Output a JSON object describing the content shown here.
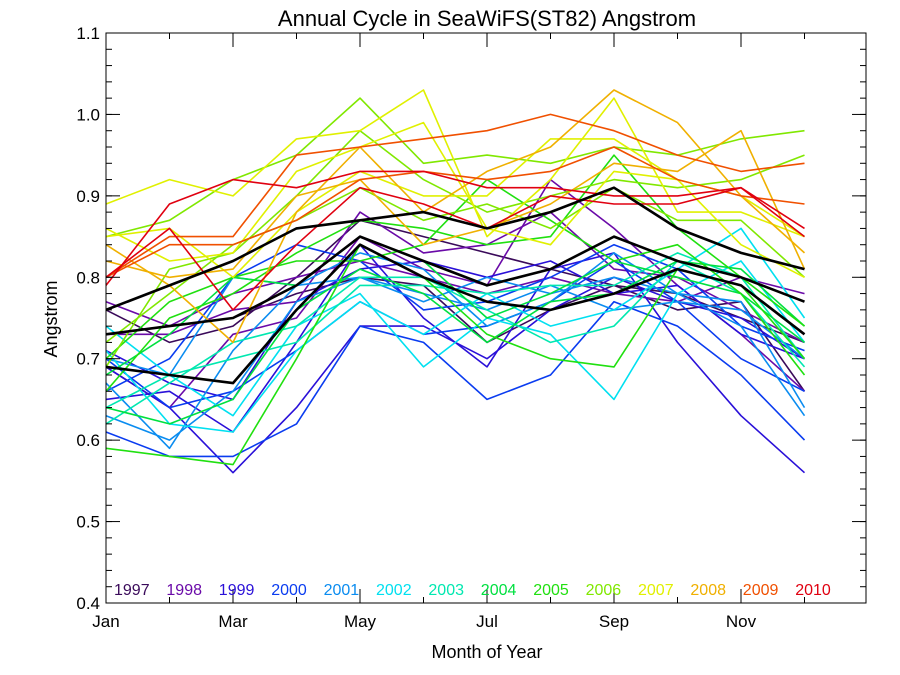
{
  "chart_data": {
    "type": "line",
    "title": "Annual Cycle in SeaWiFS(ST82) Angstrom",
    "xlabel": "Month of Year",
    "ylabel": "Angstrom",
    "xlim": [
      1,
      12
    ],
    "ylim": [
      0.4,
      1.1
    ],
    "x": [
      1,
      2,
      3,
      4,
      5,
      6,
      7,
      8,
      9,
      10,
      11,
      12
    ],
    "x_ticks": [
      {
        "value": 1,
        "label": "Jan"
      },
      {
        "value": 3,
        "label": "Mar"
      },
      {
        "value": 5,
        "label": "May"
      },
      {
        "value": 7,
        "label": "Jul"
      },
      {
        "value": 9,
        "label": "Sep"
      },
      {
        "value": 11,
        "label": "Nov"
      }
    ],
    "y_ticks": [
      {
        "value": 0.4,
        "label": "0.4"
      },
      {
        "value": 0.5,
        "label": "0.5"
      },
      {
        "value": 0.6,
        "label": "0.6"
      },
      {
        "value": 0.7,
        "label": "0.7"
      },
      {
        "value": 0.8,
        "label": "0.8"
      },
      {
        "value": 0.9,
        "label": "0.9"
      },
      {
        "value": 1.0,
        "label": "1.0"
      },
      {
        "value": 1.1,
        "label": "1.1"
      }
    ],
    "legend_position": "bottom, inside plot",
    "legend": [
      {
        "label": "1997",
        "color": "#3a0a5a"
      },
      {
        "label": "1998",
        "color": "#6a0aa8"
      },
      {
        "label": "1999",
        "color": "#2a10d8"
      },
      {
        "label": "2000",
        "color": "#0a3cf0"
      },
      {
        "label": "2001",
        "color": "#0a8cf0"
      },
      {
        "label": "2002",
        "color": "#00e0f0"
      },
      {
        "label": "2003",
        "color": "#00e8b0"
      },
      {
        "label": "2004",
        "color": "#00e040"
      },
      {
        "label": "2005",
        "color": "#20e010"
      },
      {
        "label": "2006",
        "color": "#80e800"
      },
      {
        "label": "2007",
        "color": "#e0f000"
      },
      {
        "label": "2008",
        "color": "#f0b000"
      },
      {
        "label": "2009",
        "color": "#f05000"
      },
      {
        "label": "2010",
        "color": "#e00010"
      }
    ],
    "series": [
      {
        "color": "#3a0a5a",
        "values": [
          0.76,
          0.72,
          0.74,
          0.8,
          0.87,
          0.85,
          0.83,
          0.81,
          0.79,
          0.78,
          0.75,
          0.72
        ]
      },
      {
        "color": "#3a0a5a",
        "values": [
          0.73,
          0.74,
          0.75,
          0.78,
          0.8,
          0.79,
          0.72,
          0.76,
          0.79,
          0.76,
          0.77,
          0.66
        ]
      },
      {
        "color": "#6a0aa8",
        "values": [
          0.77,
          0.74,
          0.78,
          0.8,
          0.82,
          0.8,
          0.78,
          0.8,
          0.78,
          0.77,
          0.8,
          0.78
        ]
      },
      {
        "color": "#6a0aa8",
        "values": [
          0.73,
          0.73,
          0.76,
          0.77,
          0.88,
          0.83,
          0.84,
          0.88,
          0.81,
          0.8,
          0.76,
          0.72
        ]
      },
      {
        "color": "#6a0aa8",
        "values": [
          0.69,
          0.64,
          0.73,
          0.75,
          0.85,
          0.81,
          0.79,
          0.92,
          0.86,
          0.79,
          0.73,
          0.66
        ]
      },
      {
        "color": "#2a10d8",
        "values": [
          0.69,
          0.64,
          0.56,
          0.64,
          0.74,
          0.74,
          0.7,
          0.76,
          0.8,
          0.77,
          0.75,
          0.7
        ]
      },
      {
        "color": "#2a10d8",
        "values": [
          0.65,
          0.66,
          0.61,
          0.72,
          0.84,
          0.75,
          0.69,
          0.81,
          0.83,
          0.72,
          0.63,
          0.56
        ]
      },
      {
        "color": "#2a10d8",
        "values": [
          0.71,
          0.67,
          0.65,
          0.77,
          0.81,
          0.82,
          0.8,
          0.82,
          0.78,
          0.79,
          0.73,
          0.7
        ]
      },
      {
        "color": "#0a3cf0",
        "values": [
          0.61,
          0.58,
          0.58,
          0.62,
          0.74,
          0.72,
          0.65,
          0.68,
          0.77,
          0.74,
          0.68,
          0.6
        ]
      },
      {
        "color": "#0a3cf0",
        "values": [
          0.7,
          0.64,
          0.66,
          0.71,
          0.77,
          0.73,
          0.74,
          0.77,
          0.82,
          0.77,
          0.7,
          0.66
        ]
      },
      {
        "color": "#0a3cf0",
        "values": [
          0.66,
          0.7,
          0.8,
          0.84,
          0.82,
          0.76,
          0.77,
          0.8,
          0.84,
          0.81,
          0.74,
          0.71
        ]
      },
      {
        "color": "#0a8cf0",
        "values": [
          0.63,
          0.6,
          0.66,
          0.77,
          0.8,
          0.78,
          0.76,
          0.79,
          0.76,
          0.77,
          0.76,
          0.7
        ]
      },
      {
        "color": "#0a8cf0",
        "values": [
          0.67,
          0.59,
          0.71,
          0.79,
          0.8,
          0.77,
          0.8,
          0.78,
          0.8,
          0.78,
          0.77,
          0.64
        ]
      },
      {
        "color": "#0a8cf0",
        "values": [
          0.7,
          0.68,
          0.8,
          0.79,
          0.83,
          0.81,
          0.74,
          0.77,
          0.83,
          0.78,
          0.74,
          0.63
        ]
      },
      {
        "color": "#00e0f0",
        "values": [
          0.74,
          0.68,
          0.63,
          0.74,
          0.78,
          0.69,
          0.75,
          0.73,
          0.65,
          0.78,
          0.82,
          0.72
        ]
      },
      {
        "color": "#00e0f0",
        "values": [
          0.71,
          0.62,
          0.61,
          0.71,
          0.77,
          0.73,
          0.78,
          0.74,
          0.76,
          0.81,
          0.86,
          0.75
        ]
      },
      {
        "color": "#00e8b0",
        "values": [
          0.62,
          0.67,
          0.72,
          0.74,
          0.8,
          0.8,
          0.76,
          0.72,
          0.74,
          0.82,
          0.78,
          0.69
        ]
      },
      {
        "color": "#00e8b0",
        "values": [
          0.64,
          0.68,
          0.7,
          0.72,
          0.79,
          0.79,
          0.78,
          0.79,
          0.79,
          0.83,
          0.8,
          0.7
        ]
      },
      {
        "color": "#00e040",
        "values": [
          0.64,
          0.62,
          0.65,
          0.76,
          0.81,
          0.78,
          0.72,
          0.77,
          0.78,
          0.82,
          0.81,
          0.74
        ]
      },
      {
        "color": "#00e040",
        "values": [
          0.68,
          0.73,
          0.8,
          0.79,
          0.85,
          0.82,
          0.75,
          0.78,
          0.82,
          0.8,
          0.78,
          0.72
        ]
      },
      {
        "color": "#20e010",
        "values": [
          0.59,
          0.58,
          0.57,
          0.7,
          0.84,
          0.8,
          0.73,
          0.7,
          0.69,
          0.81,
          0.79,
          0.7
        ]
      },
      {
        "color": "#20e010",
        "values": [
          0.66,
          0.75,
          0.78,
          0.83,
          0.87,
          0.86,
          0.84,
          0.85,
          0.95,
          0.86,
          0.8,
          0.74
        ]
      },
      {
        "color": "#20e010",
        "values": [
          0.7,
          0.77,
          0.8,
          0.82,
          0.82,
          0.84,
          0.92,
          0.87,
          0.82,
          0.84,
          0.78,
          0.68
        ]
      },
      {
        "color": "#80e800",
        "values": [
          0.85,
          0.87,
          0.92,
          0.95,
          1.02,
          0.94,
          0.95,
          0.94,
          0.96,
          0.95,
          0.97,
          0.98
        ]
      },
      {
        "color": "#80e800",
        "values": [
          0.69,
          0.81,
          0.83,
          0.9,
          0.98,
          0.92,
          0.88,
          0.9,
          0.92,
          0.91,
          0.92,
          0.95
        ]
      },
      {
        "color": "#80e800",
        "values": [
          0.72,
          0.78,
          0.84,
          0.87,
          0.91,
          0.87,
          0.89,
          0.86,
          0.91,
          0.87,
          0.87,
          0.8
        ]
      },
      {
        "color": "#e0f000",
        "values": [
          0.89,
          0.92,
          0.9,
          0.97,
          0.98,
          1.03,
          0.85,
          0.92,
          1.02,
          0.88,
          0.88,
          0.85
        ]
      },
      {
        "color": "#e0f000",
        "values": [
          0.86,
          0.82,
          0.83,
          0.93,
          0.96,
          0.99,
          0.86,
          0.84,
          0.93,
          0.92,
          0.9,
          0.85
        ]
      },
      {
        "color": "#e0f000",
        "values": [
          0.85,
          0.86,
          0.8,
          0.88,
          0.93,
          0.9,
          0.9,
          0.97,
          0.97,
          0.92,
          0.84,
          0.8
        ]
      },
      {
        "color": "#f0b000",
        "values": [
          0.84,
          0.79,
          0.72,
          0.88,
          0.96,
          0.88,
          0.93,
          0.96,
          1.03,
          0.99,
          0.9,
          0.83
        ]
      },
      {
        "color": "#f0b000",
        "values": [
          0.82,
          0.8,
          0.81,
          0.9,
          0.92,
          0.84,
          0.86,
          0.89,
          0.94,
          0.93,
          0.98,
          0.81
        ]
      },
      {
        "color": "#f05000",
        "values": [
          0.8,
          0.85,
          0.85,
          0.95,
          0.96,
          0.97,
          0.98,
          1.0,
          0.98,
          0.95,
          0.93,
          0.94
        ]
      },
      {
        "color": "#f05000",
        "values": [
          0.8,
          0.84,
          0.84,
          0.87,
          0.92,
          0.93,
          0.92,
          0.93,
          0.96,
          0.92,
          0.9,
          0.89
        ]
      },
      {
        "color": "#e00010",
        "values": [
          0.79,
          0.89,
          0.92,
          0.91,
          0.93,
          0.93,
          0.91,
          0.91,
          0.9,
          0.9,
          0.91,
          0.85
        ]
      },
      {
        "color": "#e00010",
        "values": [
          0.8,
          0.86,
          0.76,
          0.84,
          0.91,
          0.89,
          0.86,
          0.9,
          0.89,
          0.89,
          0.91,
          0.86
        ]
      },
      {
        "color": "#000000",
        "width": 2.6,
        "values": [
          0.76,
          0.79,
          0.82,
          0.86,
          0.87,
          0.88,
          0.86,
          0.88,
          0.91,
          0.86,
          0.83,
          0.81
        ]
      },
      {
        "color": "#000000",
        "width": 2.6,
        "values": [
          0.73,
          0.74,
          0.75,
          0.79,
          0.85,
          0.82,
          0.79,
          0.81,
          0.85,
          0.82,
          0.8,
          0.77
        ]
      },
      {
        "color": "#000000",
        "width": 2.6,
        "values": [
          0.69,
          0.68,
          0.67,
          0.76,
          0.84,
          0.8,
          0.77,
          0.76,
          0.78,
          0.81,
          0.79,
          0.73
        ]
      }
    ]
  }
}
